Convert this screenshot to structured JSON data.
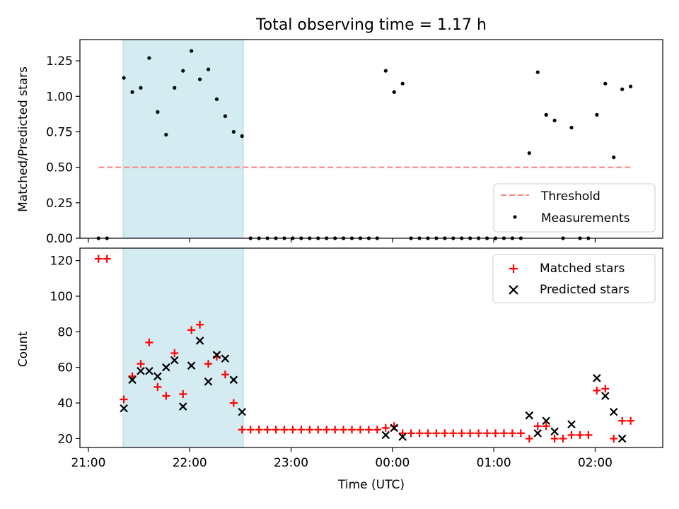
{
  "chart_data": [
    {
      "type": "scatter",
      "title": "Total observing time = 1.17 h",
      "xlabel": "",
      "ylabel": "Matched/Predicted stars",
      "ylim": [
        0,
        1.4
      ],
      "yticks": [
        0,
        0.25,
        0.5,
        0.75,
        1.0,
        1.25
      ],
      "ytick_labels": [
        "0.00",
        "0.25",
        "0.50",
        "0.75",
        "1.00",
        "1.25"
      ],
      "xlim": [
        "20:55",
        "02:40"
      ],
      "x_axis_type": "time",
      "highlight_span": [
        "21:21",
        "22:32"
      ],
      "legend_position": "lower right",
      "series": [
        {
          "name": "Threshold",
          "style": "dashed line",
          "color": "#ff7f7f",
          "x": [
            "21:06",
            "02:22"
          ],
          "y": [
            0.5,
            0.5
          ]
        },
        {
          "name": "Measurements",
          "style": "dot",
          "color": "#000000",
          "x": [
            "21:06",
            "21:11",
            "21:21",
            "21:26",
            "21:31",
            "21:36",
            "21:41",
            "21:46",
            "21:51",
            "21:56",
            "22:01",
            "22:06",
            "22:11",
            "22:16",
            "22:21",
            "22:26",
            "22:31",
            "22:36",
            "22:41",
            "22:46",
            "22:51",
            "22:56",
            "23:01",
            "23:06",
            "23:11",
            "23:16",
            "23:21",
            "23:26",
            "23:31",
            "23:36",
            "23:41",
            "23:46",
            "23:51",
            "23:56",
            "00:01",
            "00:06",
            "00:11",
            "00:16",
            "00:21",
            "00:26",
            "00:31",
            "00:36",
            "00:41",
            "00:46",
            "00:51",
            "00:56",
            "01:01",
            "01:06",
            "01:11",
            "01:16",
            "01:21",
            "01:26",
            "01:31",
            "01:36",
            "01:41",
            "01:46",
            "01:51",
            "01:56",
            "02:01",
            "02:06",
            "02:11",
            "02:16",
            "02:21"
          ],
          "y": [
            0,
            0,
            1.13,
            1.03,
            1.06,
            1.27,
            0.89,
            0.73,
            1.06,
            1.18,
            1.32,
            1.12,
            1.19,
            0.98,
            0.86,
            0.75,
            0.72,
            0,
            0,
            0,
            0,
            0,
            0,
            0,
            0,
            0,
            0,
            0,
            0,
            0,
            0,
            0,
            0,
            1.18,
            1.03,
            1.09,
            0,
            0,
            0,
            0,
            0,
            0,
            0,
            0,
            0,
            0,
            0,
            0,
            0,
            0,
            0.6,
            1.17,
            0.87,
            0.83,
            0,
            0.78,
            0,
            0,
            0.87,
            1.09,
            0.57,
            1.05,
            1.07
          ]
        }
      ]
    },
    {
      "type": "scatter",
      "title": "",
      "xlabel": "Time (UTC)",
      "ylabel": "Count",
      "ylim": [
        15,
        127
      ],
      "yticks": [
        20,
        40,
        60,
        80,
        100,
        120
      ],
      "ytick_labels": [
        "20",
        "40",
        "60",
        "80",
        "100",
        "120"
      ],
      "xlim": [
        "20:55",
        "02:40"
      ],
      "x_axis_type": "time",
      "xticks": [
        "21:00",
        "22:00",
        "23:00",
        "00:00",
        "01:00",
        "02:00"
      ],
      "highlight_span": [
        "21:21",
        "22:32"
      ],
      "legend_position": "upper right",
      "series": [
        {
          "name": "Matched stars",
          "marker": "plus",
          "color": "#ff0000",
          "x": [
            "21:06",
            "21:11",
            "21:21",
            "21:26",
            "21:31",
            "21:36",
            "21:41",
            "21:46",
            "21:51",
            "21:56",
            "22:01",
            "22:06",
            "22:11",
            "22:16",
            "22:21",
            "22:26",
            "22:31",
            "22:36",
            "22:41",
            "22:46",
            "22:51",
            "22:56",
            "23:01",
            "23:06",
            "23:11",
            "23:16",
            "23:21",
            "23:26",
            "23:31",
            "23:36",
            "23:41",
            "23:46",
            "23:51",
            "23:56",
            "00:01",
            "00:06",
            "00:11",
            "00:16",
            "00:21",
            "00:26",
            "00:31",
            "00:36",
            "00:41",
            "00:46",
            "00:51",
            "00:56",
            "01:01",
            "01:06",
            "01:11",
            "01:16",
            "01:21",
            "01:26",
            "01:31",
            "01:36",
            "01:41",
            "01:46",
            "01:51",
            "01:56",
            "02:01",
            "02:06",
            "02:11",
            "02:16",
            "02:21"
          ],
          "y": [
            121,
            121,
            42,
            55,
            62,
            74,
            49,
            44,
            68,
            45,
            81,
            84,
            62,
            66,
            56,
            40,
            25,
            25,
            25,
            25,
            25,
            25,
            25,
            25,
            25,
            25,
            25,
            25,
            25,
            25,
            25,
            25,
            25,
            26,
            27,
            23,
            23,
            23,
            23,
            23,
            23,
            23,
            23,
            23,
            23,
            23,
            23,
            23,
            23,
            23,
            20,
            27,
            27,
            20,
            20,
            22,
            22,
            22,
            47,
            48,
            20,
            30,
            30
          ]
        },
        {
          "name": "Predicted stars",
          "marker": "x",
          "color": "#000000",
          "x": [
            "21:21",
            "21:26",
            "21:31",
            "21:36",
            "21:41",
            "21:46",
            "21:51",
            "21:56",
            "22:01",
            "22:06",
            "22:11",
            "22:16",
            "22:21",
            "22:26",
            "22:31",
            "23:56",
            "00:01",
            "00:06",
            "01:21",
            "01:26",
            "01:31",
            "01:36",
            "01:46",
            "02:01",
            "02:06",
            "02:11",
            "02:16"
          ],
          "y": [
            37,
            53,
            58,
            58,
            55,
            60,
            64,
            38,
            61,
            75,
            52,
            67,
            65,
            53,
            35,
            22,
            26,
            21,
            33,
            23,
            30,
            24,
            28,
            54,
            44,
            35,
            20
          ]
        }
      ]
    }
  ]
}
